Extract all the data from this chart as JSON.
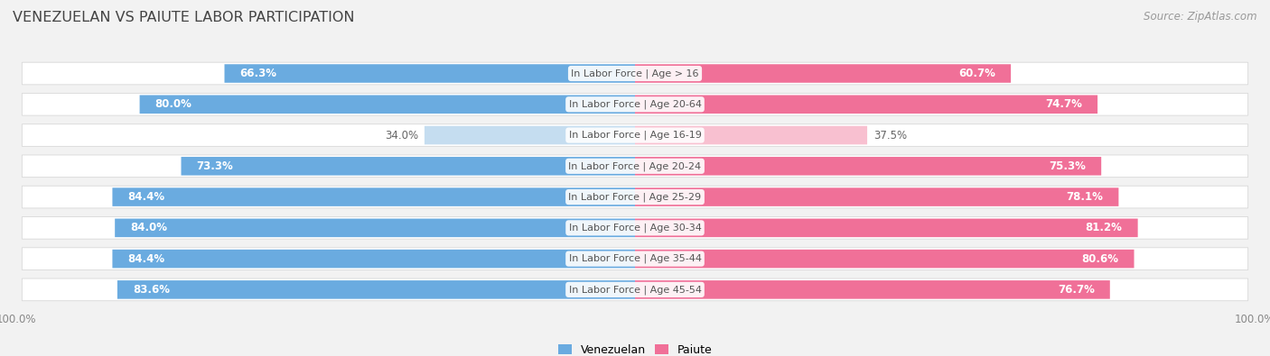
{
  "title": "VENEZUELAN VS PAIUTE LABOR PARTICIPATION",
  "source": "Source: ZipAtlas.com",
  "categories": [
    "In Labor Force | Age > 16",
    "In Labor Force | Age 20-64",
    "In Labor Force | Age 16-19",
    "In Labor Force | Age 20-24",
    "In Labor Force | Age 25-29",
    "In Labor Force | Age 30-34",
    "In Labor Force | Age 35-44",
    "In Labor Force | Age 45-54"
  ],
  "venezuelan_values": [
    66.3,
    80.0,
    34.0,
    73.3,
    84.4,
    84.0,
    84.4,
    83.6
  ],
  "paiute_values": [
    60.7,
    74.7,
    37.5,
    75.3,
    78.1,
    81.2,
    80.6,
    76.7
  ],
  "venezuelan_color": "#6aabe0",
  "venezuelan_color_light": "#c5ddf0",
  "paiute_color": "#f07098",
  "paiute_color_light": "#f8c0d0",
  "label_color_white": "#ffffff",
  "label_color_dark": "#666666",
  "bg_color": "#f2f2f2",
  "row_bg": "#ffffff",
  "row_border": "#d8d8d8",
  "center_text_color": "#555555",
  "axis_text_color": "#888888",
  "title_color": "#444444",
  "source_color": "#999999",
  "max_val": 100.0,
  "title_fontsize": 11.5,
  "source_fontsize": 8.5,
  "label_fontsize": 8.5,
  "cat_fontsize": 8.0
}
